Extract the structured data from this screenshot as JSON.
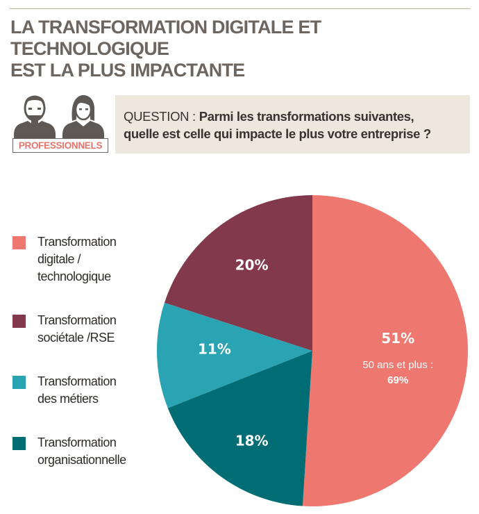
{
  "header": {
    "title_line1": "LA TRANSFORMATION DIGITALE ET TECHNOLOGIQUE",
    "title_line2": "EST LA PLUS IMPACTANTE"
  },
  "persona": {
    "label": "PROFESSIONNELS",
    "icon": "man-woman-silhouettes-icon"
  },
  "question": {
    "label": "QUESTION : ",
    "line1": "Parmi les transformations suivantes,",
    "line2": "quelle est celle qui impacte le plus votre entreprise ?"
  },
  "legend": [
    {
      "lines": [
        "Transformation",
        "digitale /",
        "technologique"
      ],
      "color": "#ee7870"
    },
    {
      "lines": [
        "Transformation",
        "sociétale /RSE"
      ],
      "color": "#82394c"
    },
    {
      "lines": [
        "Transformation",
        "des métiers"
      ],
      "color": "#2aa3b3"
    },
    {
      "lines": [
        "Transformation",
        "organisationnelle"
      ],
      "color": "#006d75"
    }
  ],
  "chart_data": {
    "type": "pie",
    "slices": [
      {
        "name": "Transformation digitale / technologique",
        "value": 51,
        "label": "51%",
        "sublabel_line1": "50 ans et plus :",
        "sublabel_line2": "69%",
        "color": "#ee7870"
      },
      {
        "name": "Transformation organisationnelle",
        "value": 18,
        "label": "18%",
        "color": "#006d75"
      },
      {
        "name": "Transformation des métiers",
        "value": 11,
        "label": "11%",
        "color": "#2aa3b3"
      },
      {
        "name": "Transformation sociétale /RSE",
        "value": 20,
        "label": "20%",
        "color": "#82394c"
      }
    ],
    "start": "12 o'clock",
    "direction": "clockwise"
  }
}
